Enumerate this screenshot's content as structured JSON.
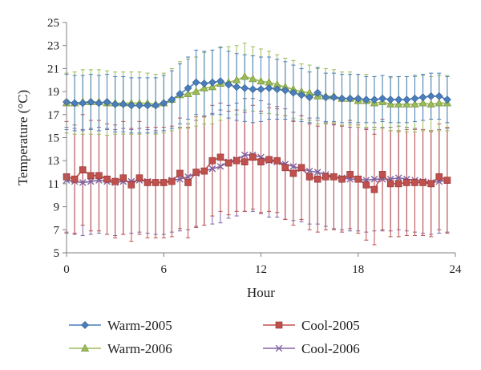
{
  "chart_data": {
    "type": "line",
    "title": "",
    "xlabel": "Hour",
    "ylabel": "Temperature (°C)",
    "xlim": [
      0,
      24
    ],
    "ylim": [
      5,
      25
    ],
    "x_ticks": [
      0,
      6,
      12,
      18,
      24
    ],
    "y_ticks": [
      5,
      7,
      9,
      11,
      13,
      15,
      17,
      19,
      21,
      23,
      25
    ],
    "x_tick_labels": [
      "0",
      "6",
      "12",
      "18",
      "24"
    ],
    "y_tick_labels": [
      "5",
      "7",
      "9",
      "11",
      "13",
      "15",
      "17",
      "19",
      "21",
      "23",
      "25"
    ],
    "grid": false,
    "legend_position": "bottom",
    "x": [
      0,
      0.5,
      1,
      1.5,
      2,
      2.5,
      3,
      3.5,
      4,
      4.5,
      5,
      5.5,
      6,
      6.5,
      7,
      7.5,
      8,
      8.5,
      9,
      9.5,
      10,
      10.5,
      11,
      11.5,
      12,
      12.5,
      13,
      13.5,
      14,
      14.5,
      15,
      15.5,
      16,
      16.5,
      17,
      17.5,
      18,
      18.5,
      19,
      19.5,
      20,
      20.5,
      21,
      21.5,
      22,
      22.5,
      23,
      23.5
    ],
    "series": [
      {
        "name": "Warm-2005",
        "color": "#4a7ebb",
        "marker": "diamond",
        "values": [
          18.1,
          18.0,
          18.0,
          18.1,
          18.0,
          18.1,
          17.9,
          17.9,
          17.8,
          17.8,
          17.8,
          17.8,
          18.0,
          18.3,
          18.8,
          19.3,
          19.8,
          19.7,
          19.8,
          19.9,
          19.6,
          19.4,
          19.3,
          19.2,
          19.2,
          19.3,
          19.2,
          19.1,
          18.9,
          18.7,
          18.5,
          18.9,
          18.5,
          18.5,
          18.4,
          18.4,
          18.4,
          18.3,
          18.3,
          18.4,
          18.3,
          18.3,
          18.3,
          18.4,
          18.5,
          18.6,
          18.6,
          18.3
        ],
        "error": [
          2.4,
          2.4,
          2.4,
          2.4,
          2.4,
          2.4,
          2.4,
          2.4,
          2.4,
          2.4,
          2.4,
          2.4,
          2.4,
          2.5,
          2.6,
          2.7,
          2.8,
          2.8,
          2.8,
          2.9,
          2.9,
          2.9,
          2.9,
          2.9,
          2.8,
          2.7,
          2.6,
          2.5,
          2.4,
          2.3,
          2.2,
          2.2,
          2.1,
          2.1,
          2.1,
          2.1,
          2.1,
          2.0,
          2.0,
          2.0,
          2.0,
          2.0,
          2.0,
          2.0,
          2.0,
          2.0,
          2.0,
          2.0
        ]
      },
      {
        "name": "Warm-2006",
        "color": "#9bbb59",
        "marker": "triangle",
        "values": [
          18.0,
          18.0,
          18.1,
          18.1,
          18.1,
          18.0,
          18.0,
          18.0,
          18.0,
          18.0,
          18.0,
          17.9,
          18.0,
          18.3,
          18.7,
          18.8,
          19.0,
          19.3,
          19.4,
          19.7,
          19.8,
          20.0,
          20.3,
          20.1,
          19.9,
          19.8,
          19.6,
          19.4,
          19.2,
          19.0,
          18.9,
          18.6,
          18.6,
          18.6,
          18.4,
          18.4,
          18.2,
          18.2,
          18.0,
          18.1,
          17.9,
          17.9,
          17.9,
          17.9,
          18.0,
          17.9,
          18.0,
          18.0
        ],
        "error": [
          2.6,
          2.7,
          2.8,
          2.8,
          2.8,
          2.8,
          2.7,
          2.7,
          2.7,
          2.7,
          2.6,
          2.6,
          2.6,
          2.7,
          2.9,
          3.0,
          3.0,
          3.1,
          3.2,
          3.2,
          3.1,
          3.0,
          2.9,
          2.8,
          2.8,
          2.7,
          2.6,
          2.5,
          2.5,
          2.4,
          2.4,
          2.4,
          2.4,
          2.3,
          2.3,
          2.3,
          2.3,
          2.3,
          2.3,
          2.3,
          2.3,
          2.4,
          2.4,
          2.4,
          2.4,
          2.4,
          2.4,
          2.4
        ]
      },
      {
        "name": "Cool-2005",
        "color": "#c0504d",
        "marker": "square",
        "values": [
          11.6,
          11.4,
          12.2,
          11.7,
          11.7,
          11.4,
          11.2,
          11.5,
          10.9,
          11.5,
          11.1,
          11.1,
          11.1,
          11.2,
          11.9,
          11.1,
          12.0,
          12.1,
          13.0,
          13.3,
          12.8,
          13.0,
          12.9,
          13.3,
          12.9,
          13.1,
          13.0,
          12.4,
          11.9,
          12.4,
          11.6,
          11.4,
          11.6,
          11.6,
          11.4,
          11.8,
          11.4,
          10.9,
          10.5,
          11.8,
          11.0,
          11.0,
          11.1,
          11.1,
          11.1,
          11.0,
          11.6,
          11.3
        ],
        "error": [
          4.8,
          4.7,
          4.8,
          4.8,
          4.8,
          4.8,
          4.9,
          4.9,
          4.9,
          4.9,
          4.8,
          4.8,
          4.8,
          4.8,
          4.8,
          4.8,
          4.8,
          4.7,
          4.8,
          4.7,
          4.5,
          4.4,
          4.3,
          4.5,
          4.4,
          4.5,
          4.5,
          4.5,
          4.5,
          4.5,
          4.6,
          4.6,
          4.6,
          4.6,
          4.6,
          4.7,
          4.7,
          4.8,
          4.8,
          4.8,
          4.6,
          4.6,
          4.6,
          4.6,
          4.6,
          4.6,
          4.6,
          4.6
        ]
      },
      {
        "name": "Cool-2006",
        "color": "#8064a2",
        "marker": "x",
        "values": [
          11.3,
          11.2,
          11.1,
          11.2,
          11.3,
          11.2,
          11.1,
          11.2,
          11.2,
          11.3,
          11.2,
          11.1,
          11.1,
          11.3,
          11.4,
          11.6,
          11.9,
          12.1,
          12.3,
          12.5,
          12.9,
          13.1,
          13.5,
          13.5,
          13.3,
          13.0,
          12.9,
          12.7,
          12.5,
          12.3,
          12.1,
          12.0,
          11.8,
          11.6,
          11.5,
          11.4,
          11.4,
          11.3,
          11.4,
          11.4,
          11.4,
          11.5,
          11.4,
          11.3,
          11.2,
          11.1,
          11.2,
          11.3
        ],
        "error": [
          4.6,
          4.6,
          4.6,
          4.6,
          4.6,
          4.6,
          4.6,
          4.6,
          4.5,
          4.5,
          4.5,
          4.5,
          4.5,
          4.5,
          4.5,
          4.6,
          4.6,
          4.7,
          4.8,
          4.9,
          4.9,
          4.9,
          4.9,
          4.9,
          4.9,
          4.9,
          4.8,
          4.8,
          4.7,
          4.6,
          4.6,
          4.5,
          4.5,
          4.5,
          4.5,
          4.5,
          4.5,
          4.5,
          4.5,
          4.5,
          4.5,
          4.5,
          4.5,
          4.5,
          4.5,
          4.5,
          4.5,
          4.5
        ]
      }
    ]
  }
}
